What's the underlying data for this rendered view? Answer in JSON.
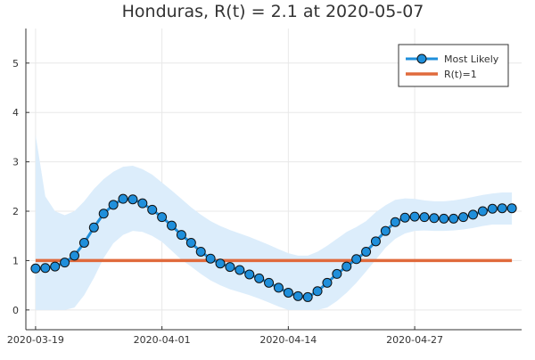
{
  "chart_data": {
    "type": "line",
    "title": "Honduras, R(t) = 2.1 at 2020-05-07",
    "xlabel": "",
    "ylabel": "",
    "x_range": [
      "2020-03-18",
      "2020-05-08"
    ],
    "ylim": [
      -0.4,
      5.7
    ],
    "x_ticks": [
      "2020-03-19",
      "2020-04-01",
      "2020-04-14",
      "2020-04-27"
    ],
    "y_ticks": [
      0,
      1,
      2,
      3,
      4,
      5
    ],
    "grid": true,
    "legend_position": "top-right",
    "series": [
      {
        "name": "Most Likely",
        "style": "line-with-markers",
        "color": "#1f8fdb",
        "x": [
          "2020-03-19",
          "2020-03-20",
          "2020-03-21",
          "2020-03-22",
          "2020-03-23",
          "2020-03-24",
          "2020-03-25",
          "2020-03-26",
          "2020-03-27",
          "2020-03-28",
          "2020-03-29",
          "2020-03-30",
          "2020-03-31",
          "2020-04-01",
          "2020-04-02",
          "2020-04-03",
          "2020-04-04",
          "2020-04-05",
          "2020-04-06",
          "2020-04-07",
          "2020-04-08",
          "2020-04-09",
          "2020-04-10",
          "2020-04-11",
          "2020-04-12",
          "2020-04-13",
          "2020-04-14",
          "2020-04-15",
          "2020-04-16",
          "2020-04-17",
          "2020-04-18",
          "2020-04-19",
          "2020-04-20",
          "2020-04-21",
          "2020-04-22",
          "2020-04-23",
          "2020-04-24",
          "2020-04-25",
          "2020-04-26",
          "2020-04-27",
          "2020-04-28",
          "2020-04-29",
          "2020-04-30",
          "2020-05-01",
          "2020-05-02",
          "2020-05-03",
          "2020-05-04",
          "2020-05-05",
          "2020-05-06",
          "2020-05-07"
        ],
        "values": [
          0.84,
          0.85,
          0.88,
          0.96,
          1.1,
          1.36,
          1.67,
          1.95,
          2.13,
          2.25,
          2.24,
          2.16,
          2.03,
          1.88,
          1.71,
          1.52,
          1.36,
          1.18,
          1.04,
          0.94,
          0.87,
          0.81,
          0.72,
          0.64,
          0.55,
          0.45,
          0.35,
          0.28,
          0.26,
          0.38,
          0.55,
          0.73,
          0.88,
          1.03,
          1.18,
          1.39,
          1.6,
          1.78,
          1.87,
          1.89,
          1.88,
          1.86,
          1.85,
          1.85,
          1.88,
          1.93,
          2.0,
          2.05,
          2.06,
          2.06
        ]
      },
      {
        "name": "R(t)=1",
        "style": "line",
        "color": "#e06a3c",
        "x": [
          "2020-03-19",
          "2020-05-07"
        ],
        "values": [
          1,
          1
        ]
      }
    ],
    "band": {
      "color": "#dcedfb",
      "x": [
        "2020-03-19",
        "2020-03-20",
        "2020-03-21",
        "2020-03-22",
        "2020-03-23",
        "2020-03-24",
        "2020-03-25",
        "2020-03-26",
        "2020-03-27",
        "2020-03-28",
        "2020-03-29",
        "2020-03-30",
        "2020-03-31",
        "2020-04-01",
        "2020-04-02",
        "2020-04-03",
        "2020-04-04",
        "2020-04-05",
        "2020-04-06",
        "2020-04-07",
        "2020-04-08",
        "2020-04-09",
        "2020-04-10",
        "2020-04-11",
        "2020-04-12",
        "2020-04-13",
        "2020-04-14",
        "2020-04-15",
        "2020-04-16",
        "2020-04-17",
        "2020-04-18",
        "2020-04-19",
        "2020-04-20",
        "2020-04-21",
        "2020-04-22",
        "2020-04-23",
        "2020-04-24",
        "2020-04-25",
        "2020-04-26",
        "2020-04-27",
        "2020-04-28",
        "2020-04-29",
        "2020-04-30",
        "2020-05-01",
        "2020-05-02",
        "2020-05-03",
        "2020-05-04",
        "2020-05-05",
        "2020-05-06",
        "2020-05-07"
      ],
      "lower": [
        0.0,
        0.0,
        0.0,
        0.0,
        0.05,
        0.3,
        0.65,
        1.05,
        1.35,
        1.52,
        1.6,
        1.58,
        1.5,
        1.38,
        1.2,
        1.02,
        0.88,
        0.73,
        0.6,
        0.5,
        0.42,
        0.36,
        0.3,
        0.23,
        0.15,
        0.07,
        0.0,
        0.0,
        0.0,
        0.0,
        0.05,
        0.18,
        0.35,
        0.55,
        0.78,
        1.02,
        1.26,
        1.44,
        1.55,
        1.6,
        1.61,
        1.6,
        1.6,
        1.61,
        1.63,
        1.66,
        1.7,
        1.73,
        1.73,
        1.73
      ],
      "upper": [
        3.55,
        2.3,
        2.0,
        1.92,
        2.0,
        2.2,
        2.45,
        2.65,
        2.8,
        2.9,
        2.92,
        2.85,
        2.74,
        2.58,
        2.42,
        2.25,
        2.08,
        1.93,
        1.8,
        1.7,
        1.62,
        1.55,
        1.48,
        1.4,
        1.32,
        1.23,
        1.15,
        1.1,
        1.1,
        1.18,
        1.3,
        1.44,
        1.58,
        1.68,
        1.8,
        1.98,
        2.12,
        2.23,
        2.26,
        2.25,
        2.22,
        2.2,
        2.2,
        2.22,
        2.25,
        2.29,
        2.33,
        2.36,
        2.38,
        2.38
      ]
    }
  }
}
